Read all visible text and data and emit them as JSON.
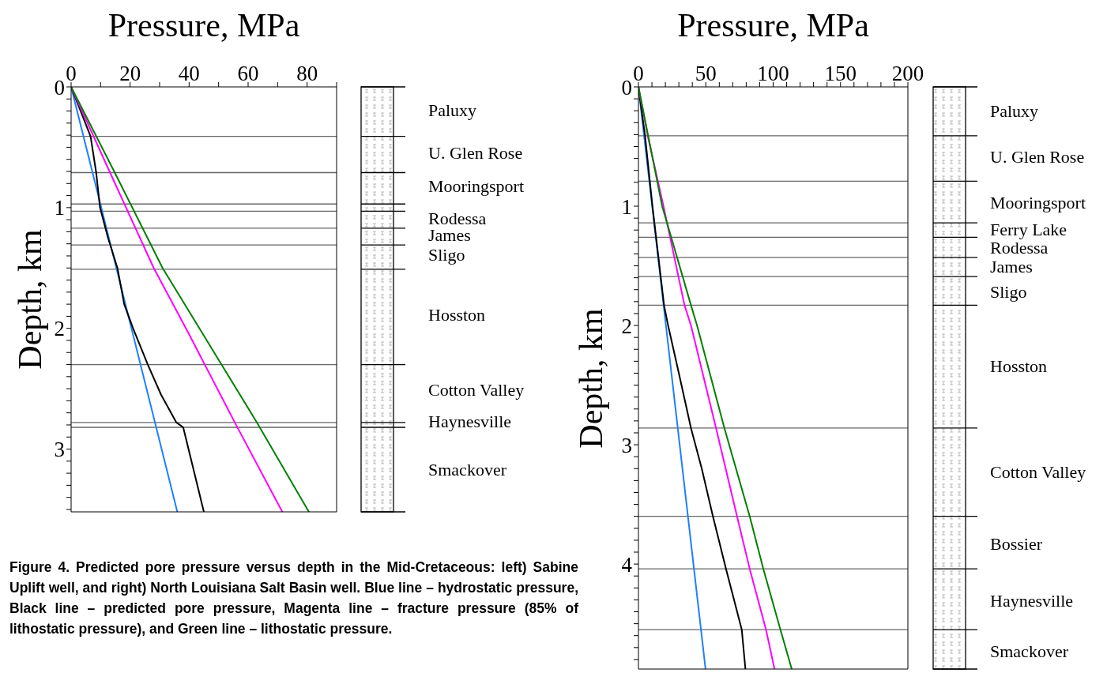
{
  "chart_data": [
    {
      "type": "line",
      "xlabel": "Pressure, MPa",
      "ylabel": "Depth, km",
      "xlim": [
        0,
        90
      ],
      "xticks": [
        0,
        {
          "value": 10,
          "label": null
        },
        20,
        {
          "value": 30,
          "label": null
        },
        40,
        {
          "value": 50,
          "label": null
        },
        60,
        {
          "value": 70,
          "label": null
        },
        80,
        {
          "value": 90,
          "label": null
        }
      ],
      "ylim": [
        3.52,
        0
      ],
      "yticks": [
        0,
        {
          "value": 0.1,
          "label": null
        },
        {
          "value": 0.2,
          "label": null
        },
        {
          "value": 0.3,
          "label": null
        },
        {
          "value": 0.4,
          "label": null
        },
        {
          "value": 0.5,
          "label": null
        },
        {
          "value": 0.6,
          "label": null
        },
        {
          "value": 0.7,
          "label": null
        },
        {
          "value": 0.8,
          "label": null
        },
        {
          "value": 0.9,
          "label": null
        },
        1,
        {
          "value": 1.1,
          "label": null
        },
        {
          "value": 1.2,
          "label": null
        },
        {
          "value": 1.3,
          "label": null
        },
        {
          "value": 1.4,
          "label": null
        },
        {
          "value": 1.5,
          "label": null
        },
        {
          "value": 1.6,
          "label": null
        },
        {
          "value": 1.7,
          "label": null
        },
        {
          "value": 1.8,
          "label": null
        },
        {
          "value": 1.9,
          "label": null
        },
        2,
        {
          "value": 2.1,
          "label": null
        },
        {
          "value": 2.2,
          "label": null
        },
        {
          "value": 2.3,
          "label": null
        },
        {
          "value": 2.4,
          "label": null
        },
        {
          "value": 2.5,
          "label": null
        },
        {
          "value": 2.6,
          "label": null
        },
        {
          "value": 2.7,
          "label": null
        },
        {
          "value": 2.8,
          "label": null
        },
        {
          "value": 2.9,
          "label": null
        },
        3,
        {
          "value": 3.1,
          "label": null
        },
        {
          "value": 3.2,
          "label": null
        },
        {
          "value": 3.3,
          "label": null
        },
        {
          "value": 3.4,
          "label": null
        },
        {
          "value": 3.5,
          "label": null
        }
      ],
      "series": [
        {
          "color": "#1e7fff",
          "x": [
            0,
            36
          ],
          "values": [
            0,
            3.52
          ]
        },
        {
          "color": "#000000",
          "x": [
            0,
            6.6,
            8.5,
            9.8,
            12.5,
            15.7,
            18,
            21,
            26,
            30.5,
            35.7,
            38,
            45
          ],
          "values": [
            0,
            0.41,
            0.71,
            1.0,
            1.25,
            1.5,
            1.8,
            2.0,
            2.3,
            2.55,
            2.78,
            2.82,
            3.52
          ]
        },
        {
          "color": "#ff00ff",
          "x": [
            0,
            13.2,
            28,
            40,
            55.5,
            71.6
          ],
          "values": [
            0,
            0.71,
            1.5,
            2.05,
            2.78,
            3.52
          ]
        },
        {
          "color": "#008000",
          "x": [
            0,
            14.8,
            31,
            63,
            80.6
          ],
          "values": [
            0,
            0.71,
            1.5,
            2.78,
            3.52
          ]
        }
      ],
      "ref_lines": [
        {
          "axis": "y",
          "value": 0.41
        },
        {
          "axis": "y",
          "value": 0.71
        },
        {
          "axis": "y",
          "value": 0.97
        },
        {
          "axis": "y",
          "value": 1.03
        },
        {
          "axis": "y",
          "value": 1.17
        },
        {
          "axis": "y",
          "value": 1.31
        },
        {
          "axis": "y",
          "value": 1.51
        },
        {
          "axis": "y",
          "value": 2.3
        },
        {
          "axis": "y",
          "value": 2.78
        },
        {
          "axis": "y",
          "value": 2.82
        }
      ],
      "annotations": [
        "Paluxy",
        "U. Glen Rose",
        "Mooringsport",
        "Rodessa",
        "James",
        "Sligo",
        "Hosston",
        "Cotton Valley",
        "Haynesville",
        "Smackover",
        "Figure 4.  Predicted pore pressure versus depth in the Mid-Cretaceous:  left) Sabine Uplift well, and right) North Louisiana Salt Basin well.  Blue line – hydrostatic pressure, Black line – predicted pore pressure, Magenta line – fracture pressure (85% of lithostatic pressure), and Green line – lithostatic pressure."
      ]
    },
    {
      "type": "line",
      "xlabel": "Pressure, MPa",
      "ylabel": "Depth, km",
      "xlim": [
        0,
        200
      ],
      "xticks": [
        0,
        {
          "value": 10,
          "label": null
        },
        {
          "value": 20,
          "label": null
        },
        {
          "value": 30,
          "label": null
        },
        {
          "value": 40,
          "label": null
        },
        50,
        {
          "value": 60,
          "label": null
        },
        {
          "value": 70,
          "label": null
        },
        {
          "value": 80,
          "label": null
        },
        {
          "value": 90,
          "label": null
        },
        100,
        {
          "value": 110,
          "label": null
        },
        {
          "value": 120,
          "label": null
        },
        {
          "value": 130,
          "label": null
        },
        {
          "value": 140,
          "label": null
        },
        150,
        {
          "value": 160,
          "label": null
        },
        {
          "value": 170,
          "label": null
        },
        {
          "value": 180,
          "label": null
        },
        {
          "value": 190,
          "label": null
        },
        200
      ],
      "ylim": [
        4.88,
        0
      ],
      "yticks": [
        0,
        {
          "value": 0.1,
          "label": null
        },
        {
          "value": 0.2,
          "label": null
        },
        {
          "value": 0.3,
          "label": null
        },
        {
          "value": 0.4,
          "label": null
        },
        {
          "value": 0.5,
          "label": null
        },
        {
          "value": 0.6,
          "label": null
        },
        {
          "value": 0.7,
          "label": null
        },
        {
          "value": 0.8,
          "label": null
        },
        {
          "value": 0.9,
          "label": null
        },
        1,
        {
          "value": 1.1,
          "label": null
        },
        {
          "value": 1.2,
          "label": null
        },
        {
          "value": 1.3,
          "label": null
        },
        {
          "value": 1.4,
          "label": null
        },
        {
          "value": 1.5,
          "label": null
        },
        {
          "value": 1.6,
          "label": null
        },
        {
          "value": 1.7,
          "label": null
        },
        {
          "value": 1.8,
          "label": null
        },
        {
          "value": 1.9,
          "label": null
        },
        2,
        {
          "value": 2.1,
          "label": null
        },
        {
          "value": 2.2,
          "label": null
        },
        {
          "value": 2.3,
          "label": null
        },
        {
          "value": 2.4,
          "label": null
        },
        {
          "value": 2.5,
          "label": null
        },
        {
          "value": 2.6,
          "label": null
        },
        {
          "value": 2.7,
          "label": null
        },
        {
          "value": 2.8,
          "label": null
        },
        {
          "value": 2.9,
          "label": null
        },
        3,
        {
          "value": 3.1,
          "label": null
        },
        {
          "value": 3.2,
          "label": null
        },
        {
          "value": 3.3,
          "label": null
        },
        {
          "value": 3.4,
          "label": null
        },
        {
          "value": 3.5,
          "label": null
        },
        {
          "value": 3.6,
          "label": null
        },
        {
          "value": 3.7,
          "label": null
        },
        {
          "value": 3.8,
          "label": null
        },
        {
          "value": 3.9,
          "label": null
        },
        4,
        {
          "value": 4.1,
          "label": null
        },
        {
          "value": 4.2,
          "label": null
        },
        {
          "value": 4.3,
          "label": null
        },
        {
          "value": 4.4,
          "label": null
        },
        {
          "value": 4.5,
          "label": null
        },
        {
          "value": 4.6,
          "label": null
        },
        {
          "value": 4.7,
          "label": null
        },
        {
          "value": 4.8,
          "label": null
        }
      ],
      "series": [
        {
          "color": "#1e7fff",
          "x": [
            0,
            49.8
          ],
          "values": [
            0,
            4.88
          ]
        },
        {
          "color": "#000000",
          "x": [
            0,
            4.9,
            10.4,
            19,
            22,
            30,
            39,
            47,
            55.3,
            65,
            76.7,
            79.4
          ],
          "values": [
            0,
            0.41,
            1.0,
            1.83,
            2.0,
            2.4,
            2.86,
            3.2,
            3.6,
            4.04,
            4.55,
            4.88
          ]
        },
        {
          "color": "#ff00ff",
          "x": [
            0,
            6.9,
            18.6,
            34.2,
            39,
            57.6,
            73.2,
            82.6,
            94.7,
            101
          ],
          "values": [
            0,
            0.41,
            1.0,
            1.83,
            2.0,
            2.86,
            3.6,
            4.04,
            4.55,
            4.88
          ]
        },
        {
          "color": "#008000",
          "x": [
            0,
            17.6,
            39,
            43.5,
            63.8,
            82.6,
            92.7,
            105.4,
            113.8
          ],
          "values": [
            0,
            1.0,
            1.83,
            2.0,
            2.86,
            3.6,
            4.04,
            4.55,
            4.88
          ]
        }
      ],
      "ref_lines": [
        {
          "axis": "y",
          "value": 0.41
        },
        {
          "axis": "y",
          "value": 0.79
        },
        {
          "axis": "y",
          "value": 1.14
        },
        {
          "axis": "y",
          "value": 1.26
        },
        {
          "axis": "y",
          "value": 1.43
        },
        {
          "axis": "y",
          "value": 1.59
        },
        {
          "axis": "y",
          "value": 1.83
        },
        {
          "axis": "y",
          "value": 2.86
        },
        {
          "axis": "y",
          "value": 3.6
        },
        {
          "axis": "y",
          "value": 4.04
        },
        {
          "axis": "y",
          "value": 4.55
        }
      ],
      "annotations": [
        "Paluxy",
        "U. Glen Rose",
        "Mooringsport",
        "Ferry Lake",
        "Rodessa",
        "James",
        "Sligo",
        "Hosston",
        "Cotton Valley",
        "Bossier",
        "Haynesville",
        "Smackover"
      ]
    }
  ]
}
